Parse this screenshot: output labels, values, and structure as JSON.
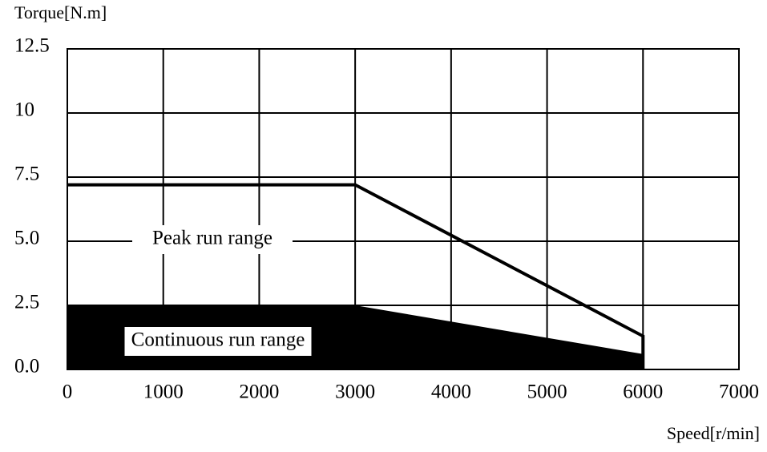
{
  "chart_data": {
    "type": "line",
    "y_label": "Torque[N.m]",
    "x_label": "Speed[r/min]",
    "xlim": [
      0,
      7000
    ],
    "xticks": [
      0,
      1000,
      2000,
      3000,
      4000,
      5000,
      6000,
      7000
    ],
    "ylim": [
      0,
      12.5
    ],
    "yticks": [
      {
        "value": 0,
        "label": "0.0"
      },
      2.5,
      {
        "value": 5,
        "label": "5.0"
      },
      7.5,
      10,
      12.5
    ],
    "grid": true,
    "series": [
      {
        "name": "Peak run range",
        "color": "#000000",
        "kind": "line",
        "x": [
          0,
          3000,
          6000,
          6000
        ],
        "values": [
          7.2,
          7.2,
          1.3,
          0
        ]
      },
      {
        "name": "Continuous run range",
        "color": "#000000",
        "kind": "area",
        "x": [
          0,
          3000,
          6000
        ],
        "values": [
          2.5,
          2.5,
          0.6
        ]
      }
    ]
  }
}
